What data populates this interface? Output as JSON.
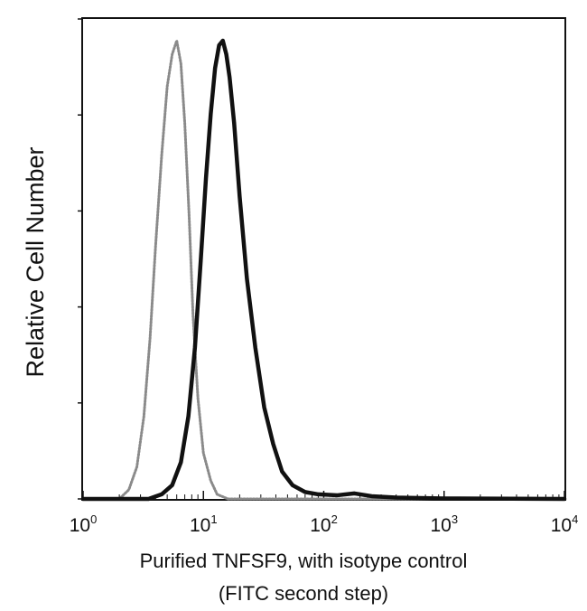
{
  "chart_data": {
    "type": "line",
    "title": "",
    "xlabel": "Purified TNFSF9, with isotype control",
    "xlabel_line2": "(FITC second step)",
    "ylabel": "Relative Cell Number",
    "x_scale": "log",
    "xlim": [
      1,
      10000
    ],
    "ylim": [
      0,
      1
    ],
    "x_ticks": [
      {
        "base": "10",
        "exp": "0"
      },
      {
        "base": "10",
        "exp": "1"
      },
      {
        "base": "10",
        "exp": "2"
      },
      {
        "base": "10",
        "exp": "3"
      },
      {
        "base": "10",
        "exp": "4"
      }
    ],
    "y_ticks_labeled": false,
    "grid": false,
    "legend": "none",
    "series": [
      {
        "style": "dotted-gray",
        "color": "#8a8a8a",
        "x": [
          1,
          2,
          2.4,
          2.8,
          3.2,
          3.6,
          4.0,
          4.5,
          5.0,
          5.5,
          6.0,
          6.5,
          7.0,
          7.6,
          8.2,
          9.0,
          10,
          11.5,
          13,
          16,
          20,
          30,
          100,
          10000
        ],
        "y": [
          0.0,
          0.0,
          0.02,
          0.07,
          0.18,
          0.35,
          0.55,
          0.75,
          0.9,
          0.97,
          1.0,
          0.95,
          0.82,
          0.62,
          0.4,
          0.22,
          0.1,
          0.04,
          0.01,
          0.0,
          0.0,
          0.0,
          0.0,
          0.0
        ]
      },
      {
        "style": "solid-black",
        "color": "#111111",
        "x": [
          1,
          3.5,
          4.5,
          5.5,
          6.5,
          7.5,
          8.5,
          9.5,
          10.5,
          11.5,
          12.5,
          13.5,
          14.5,
          15.5,
          16.5,
          18,
          20,
          23,
          27,
          32,
          38,
          45,
          55,
          70,
          90,
          130,
          180,
          250,
          400,
          1000,
          10000
        ],
        "y": [
          0.0,
          0.0,
          0.01,
          0.03,
          0.08,
          0.18,
          0.33,
          0.52,
          0.7,
          0.84,
          0.94,
          0.99,
          1.0,
          0.97,
          0.92,
          0.82,
          0.66,
          0.48,
          0.33,
          0.2,
          0.12,
          0.06,
          0.03,
          0.015,
          0.01,
          0.008,
          0.012,
          0.006,
          0.003,
          0.001,
          0.0
        ]
      }
    ]
  }
}
